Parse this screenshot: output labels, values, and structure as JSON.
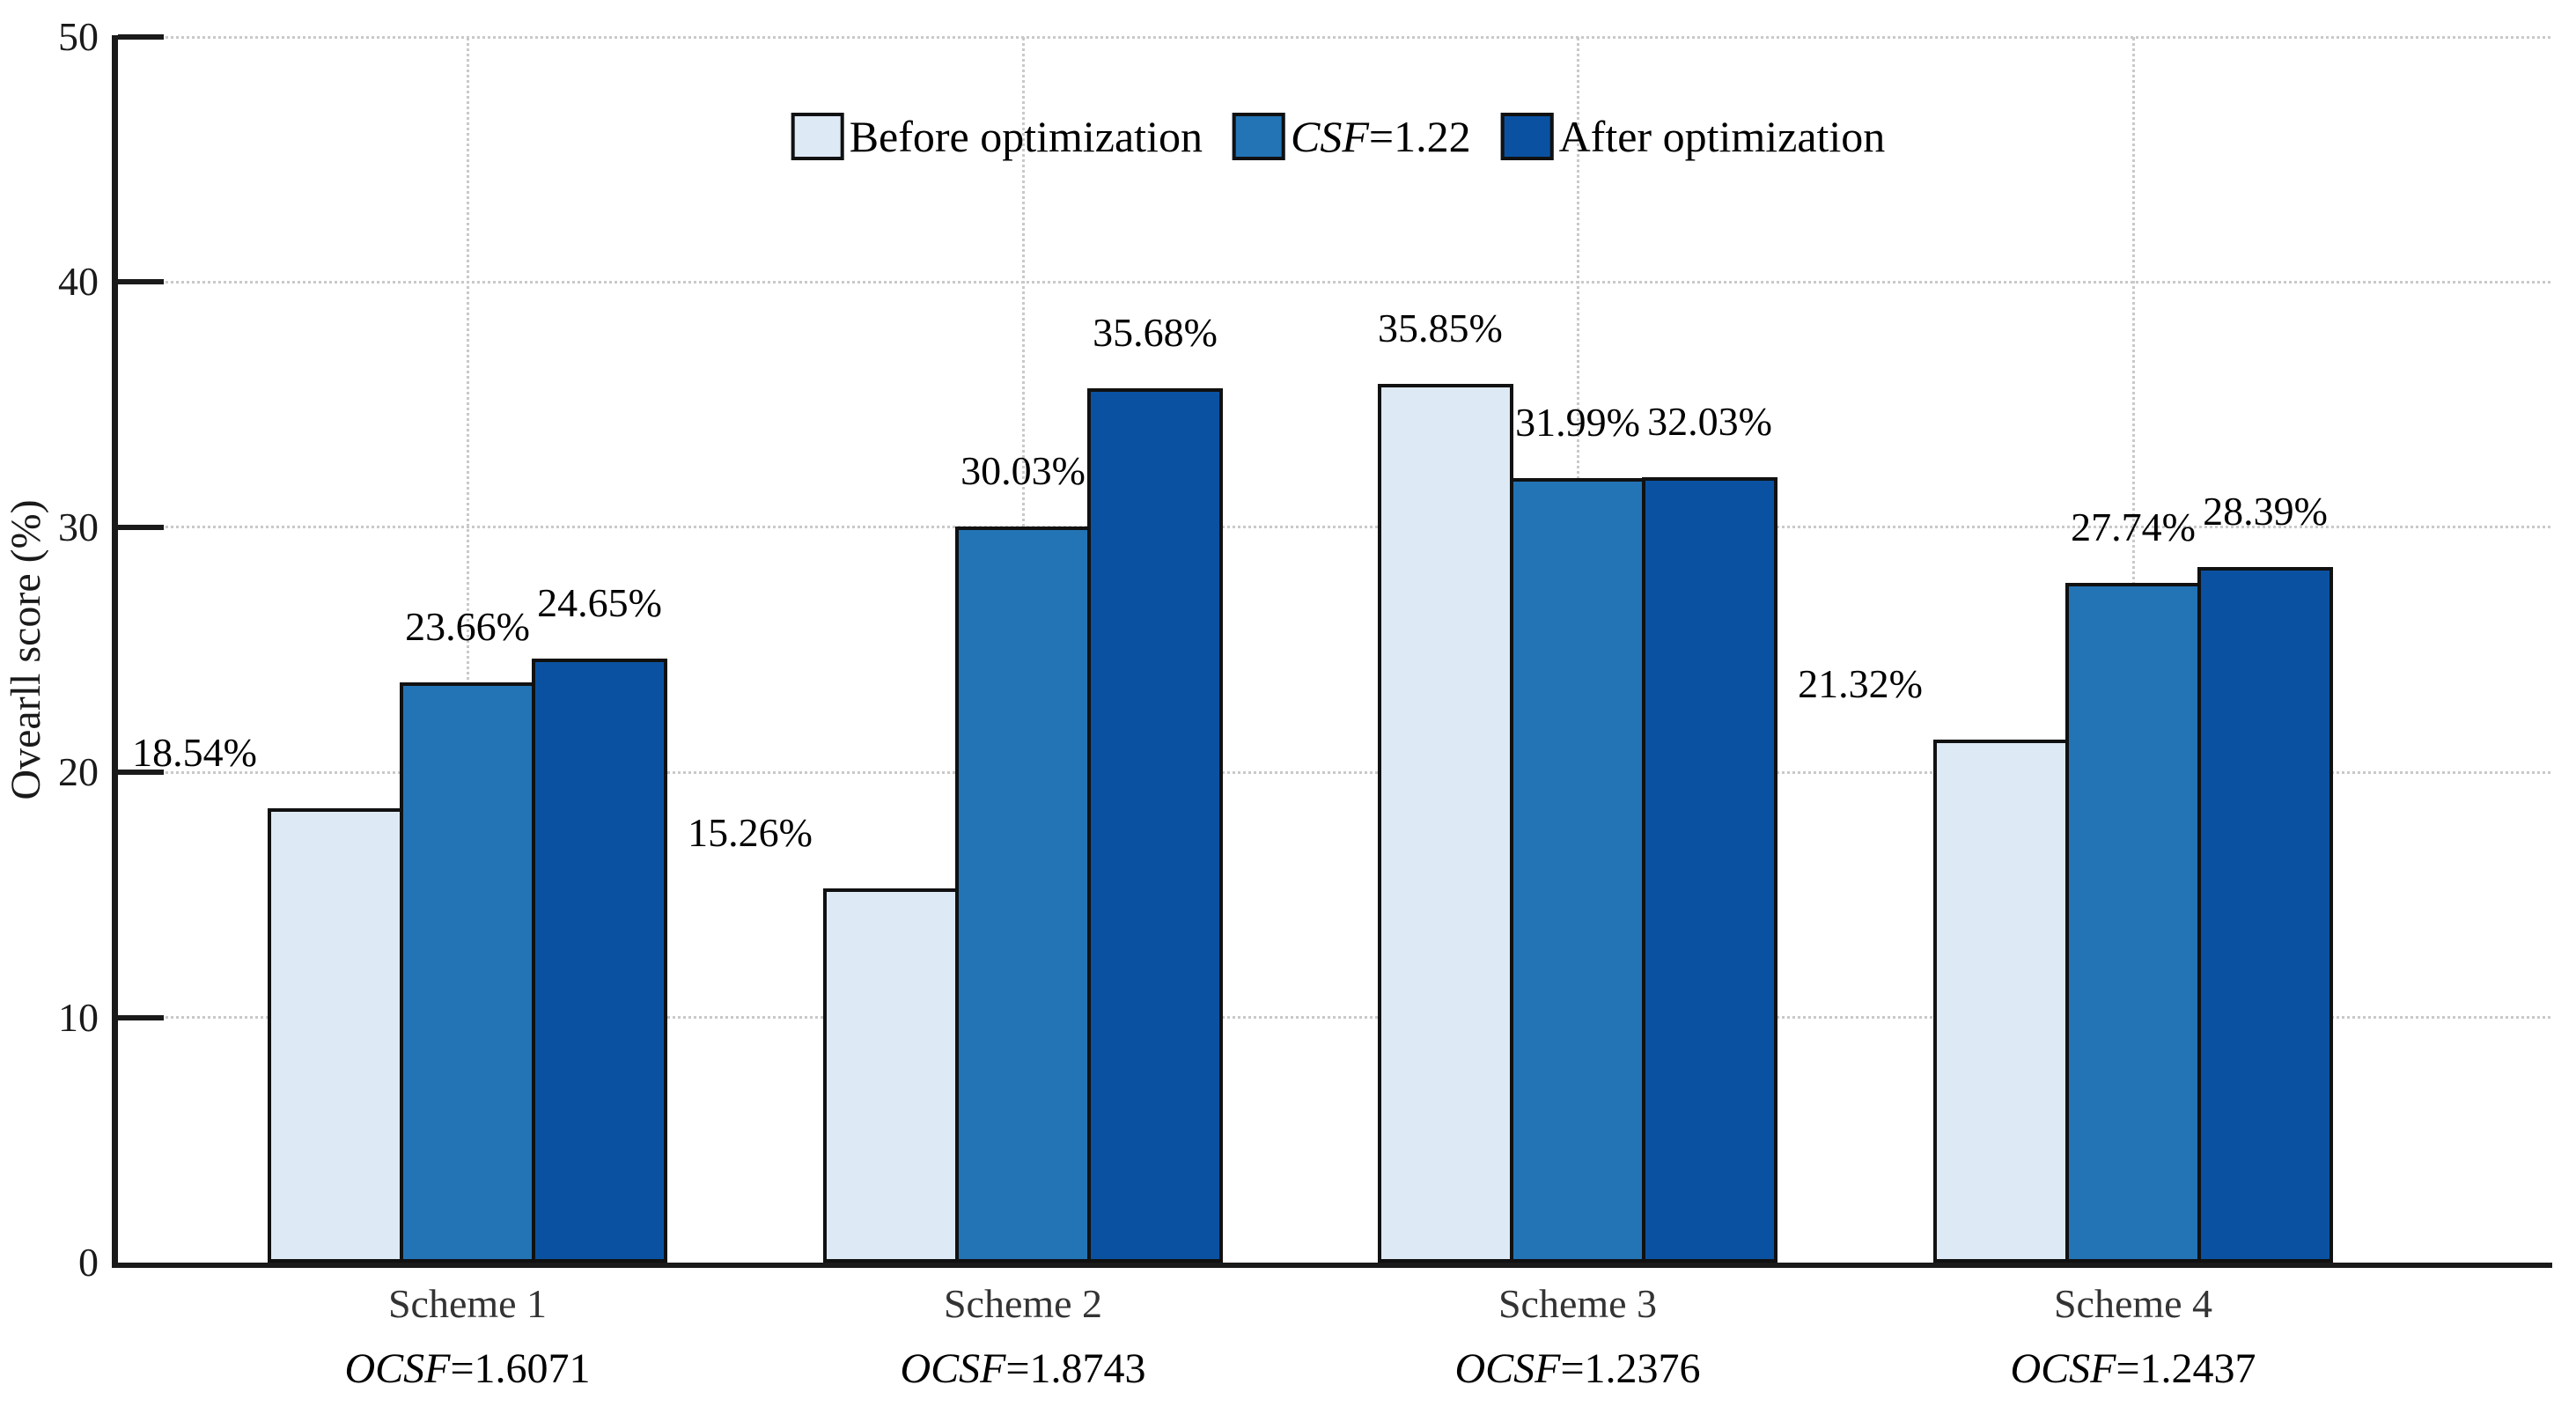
{
  "figure": {
    "y_axis_label": "Ovearll score (%)",
    "background_color": "#ffffff",
    "axis_color": "#1a1a1a",
    "grid_color": "#c9c9c9",
    "bar_border_color": "#111111",
    "legend": {
      "items": [
        {
          "italic": "",
          "text": "Before optimization",
          "swatch_color": "#dde9f5"
        },
        {
          "italic": "CSF",
          "text": "=1.22",
          "swatch_color": "#2374b5"
        },
        {
          "italic": "",
          "text": "After optimization",
          "swatch_color": "#0a52a1"
        }
      ]
    }
  },
  "chart_data": {
    "type": "bar",
    "title": "",
    "xlabel": "",
    "ylabel": "Ovearll score (%)",
    "ylim": [
      0,
      50
    ],
    "yticks": [
      0,
      10,
      20,
      30,
      40,
      50
    ],
    "grid": "dotted gray; horizontal lines at each y tick and vertical lines at each group center",
    "legend_position": "top-center inside plot, horizontal row",
    "categories": [
      "Scheme 1",
      "Scheme 2",
      "Scheme 3",
      "Scheme 4"
    ],
    "category_sublabels": [
      {
        "italic": "OCSF",
        "rest": "=1.6071"
      },
      {
        "italic": "OCSF",
        "rest": "=1.8743"
      },
      {
        "italic": "OCSF",
        "rest": "=1.2376"
      },
      {
        "italic": "OCSF",
        "rest": "=1.2437"
      }
    ],
    "series": [
      {
        "name": "Before optimization",
        "color": "#dde9f5",
        "values": [
          18.54,
          15.26,
          35.85,
          21.32
        ],
        "value_labels": [
          "18.54%",
          "15.26%",
          "35.85%",
          "21.32%"
        ],
        "label_placement": [
          "left",
          "left",
          "above-left",
          "left"
        ]
      },
      {
        "name": "CSF=1.22",
        "color": "#2374b5",
        "values": [
          23.66,
          30.03,
          31.99,
          27.74
        ],
        "value_labels": [
          "23.66%",
          "30.03%",
          "31.99%",
          "27.74%"
        ],
        "label_placement": [
          "above",
          "above",
          "above",
          "above"
        ]
      },
      {
        "name": "After optimization",
        "color": "#0a52a1",
        "values": [
          24.65,
          35.68,
          32.03,
          28.39
        ],
        "value_labels": [
          "24.65%",
          "35.68%",
          "32.03%",
          "28.39%"
        ],
        "label_placement": [
          "above",
          "above",
          "above",
          "above"
        ]
      }
    ]
  }
}
